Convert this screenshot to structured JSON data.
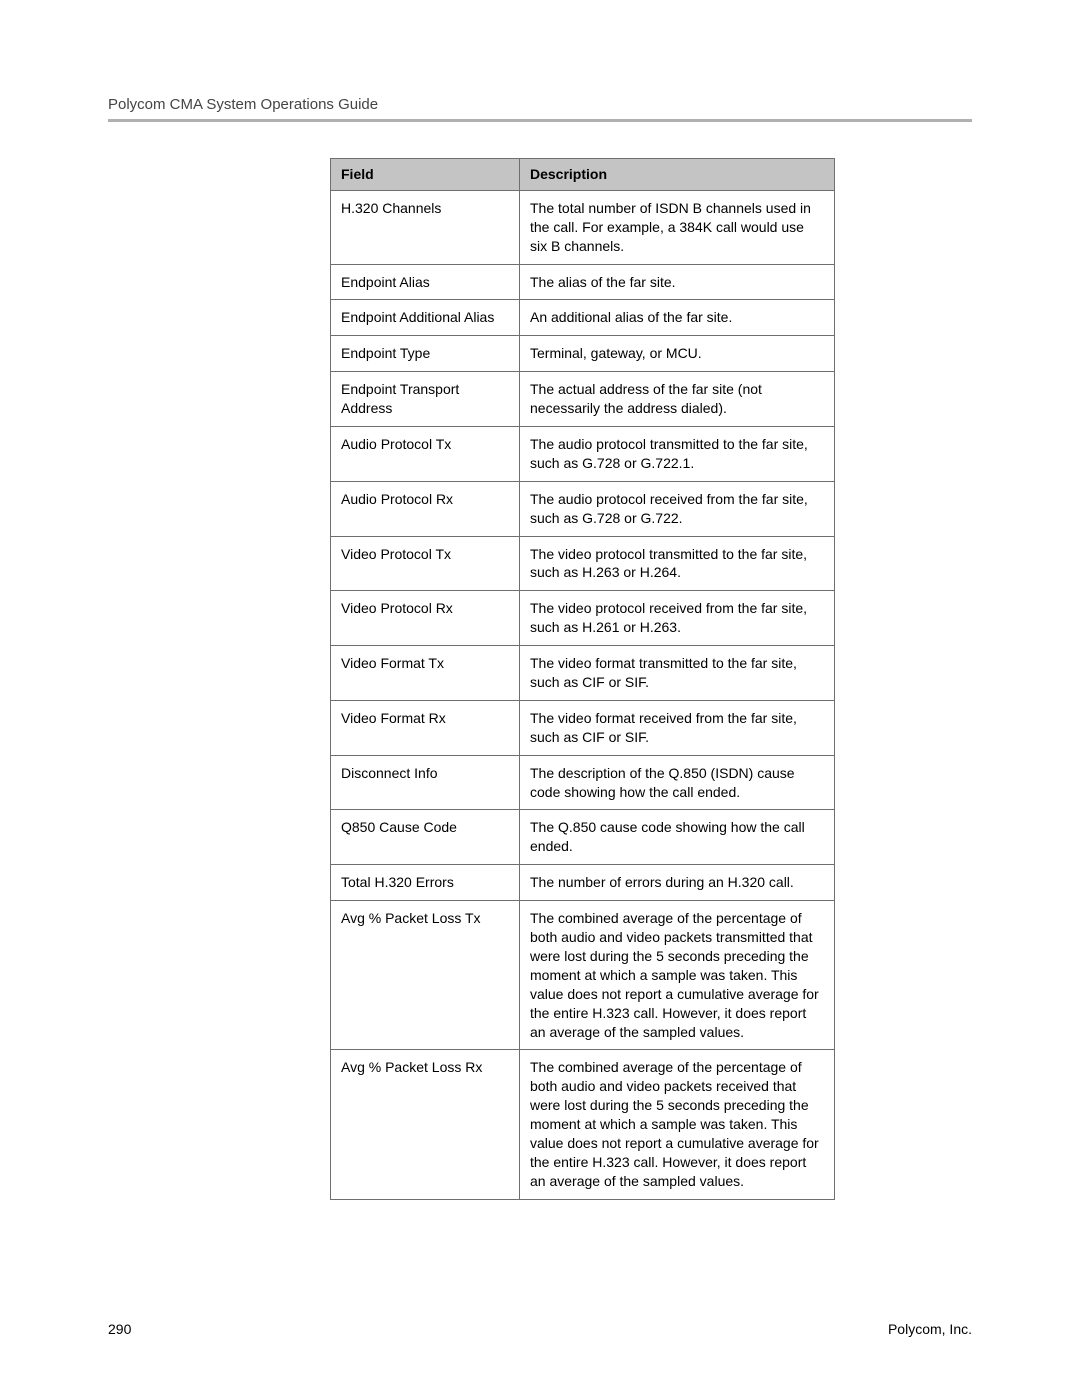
{
  "header": {
    "title": "Polycom CMA System Operations Guide"
  },
  "table": {
    "columns": [
      "Field",
      "Description"
    ],
    "header_bg": "#c4c4c4",
    "border_color": "#6f6f6f",
    "rows": [
      {
        "field": "H.320 Channels",
        "description": "The total number of ISDN B channels used in the call. For example, a 384K call would use six B channels."
      },
      {
        "field": "Endpoint Alias",
        "description": "The alias of the far site."
      },
      {
        "field": "Endpoint Additional Alias",
        "description": "An additional alias of the far site."
      },
      {
        "field": "Endpoint Type",
        "description": "Terminal, gateway, or MCU."
      },
      {
        "field": "Endpoint Transport Address",
        "description": "The actual address of the far site (not necessarily the address dialed)."
      },
      {
        "field": "Audio Protocol Tx",
        "description": "The audio protocol transmitted to the far site, such as G.728 or G.722.1."
      },
      {
        "field": "Audio Protocol Rx",
        "description": "The audio protocol received from the far site, such as G.728 or G.722."
      },
      {
        "field": "Video Protocol Tx",
        "description": "The video protocol transmitted to the far site, such as H.263 or H.264."
      },
      {
        "field": "Video Protocol Rx",
        "description": "The video protocol received from the far site, such as H.261 or H.263."
      },
      {
        "field": "Video Format Tx",
        "description": "The video format transmitted to the far site, such as CIF or SIF."
      },
      {
        "field": "Video Format Rx",
        "description": "The video format received from the far site, such as CIF or SIF."
      },
      {
        "field": "Disconnect Info",
        "description": "The description of the Q.850 (ISDN) cause code showing how the call ended."
      },
      {
        "field": "Q850 Cause Code",
        "description": "The Q.850 cause code showing how the call ended."
      },
      {
        "field": "Total H.320 Errors",
        "description": "The number of errors during an H.320 call."
      },
      {
        "field": "Avg % Packet Loss Tx",
        "description": "The combined average of the percentage of both audio and video packets transmitted that were lost during the 5 seconds preceding the moment at which a sample was taken. This value does not report a cumulative average for the entire H.323 call. However, it does report an average of the sampled values."
      },
      {
        "field": "Avg % Packet Loss Rx",
        "description": "The combined average of the percentage of both audio and video packets received that were lost during the 5 seconds preceding the moment at which a sample was taken. This value does not report a cumulative average for the entire H.323 call. However, it does report an average of the sampled values."
      }
    ]
  },
  "footer": {
    "page_number": "290",
    "company": "Polycom, Inc."
  }
}
